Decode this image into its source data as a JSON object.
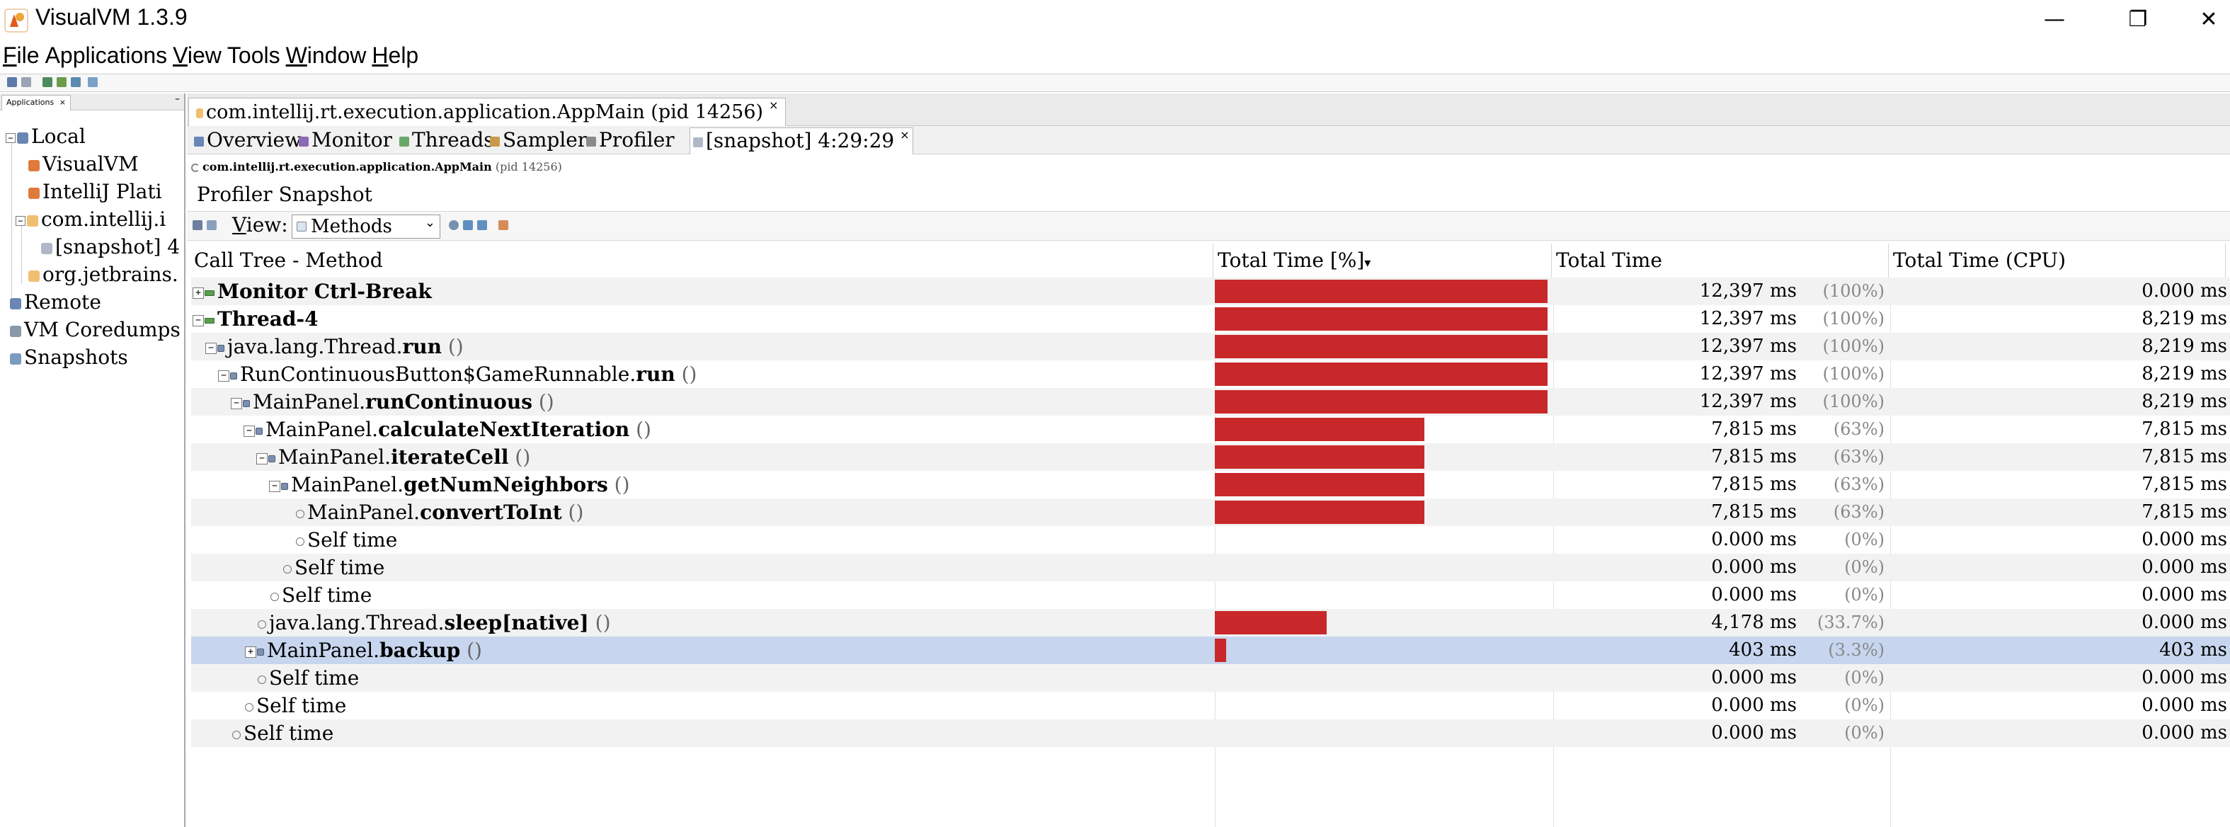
{
  "window": {
    "title": "VisualVM 1.3.9",
    "controls": {
      "minimize": "—",
      "restore": "❐",
      "close": "✕"
    }
  },
  "menu": [
    {
      "label": "File",
      "mnemonic": "F"
    },
    {
      "label": "Applications",
      "mnemonic": "A"
    },
    {
      "label": "View",
      "mnemonic": "V"
    },
    {
      "label": "Tools",
      "mnemonic": "T"
    },
    {
      "label": "Window",
      "mnemonic": "W"
    },
    {
      "label": "Help",
      "mnemonic": "H"
    }
  ],
  "left_panel": {
    "tab": "Applications",
    "tab_close": "×",
    "minimize": "–",
    "tree": [
      {
        "label": "Local",
        "icon": "computer-icon"
      },
      {
        "label": "VisualVM",
        "icon": "visualvm-app-icon"
      },
      {
        "label": "IntelliJ Plati",
        "icon": "intellij-app-icon"
      },
      {
        "label": "com.intellij.i",
        "icon": "java-app-icon"
      },
      {
        "label": "[snapshot] 4",
        "icon": "snapshot-icon"
      },
      {
        "label": "org.jetbrains.",
        "icon": "java-app-icon"
      },
      {
        "label": "Remote",
        "icon": "remote-icon"
      },
      {
        "label": "VM Coredumps",
        "icon": "coredump-icon"
      },
      {
        "label": "Snapshots",
        "icon": "snapshots-icon"
      }
    ]
  },
  "document_tab": {
    "label": "com.intellij.rt.execution.application.AppMain (pid 14256)",
    "close": "×"
  },
  "sub_tabs": [
    {
      "label": "Overview",
      "icon": "overview-icon"
    },
    {
      "label": "Monitor",
      "icon": "monitor-icon"
    },
    {
      "label": "Threads",
      "icon": "threads-icon"
    },
    {
      "label": "Sampler",
      "icon": "sampler-icon"
    },
    {
      "label": "Profiler",
      "icon": "profiler-icon"
    },
    {
      "label": "[snapshot] 4:29:29",
      "icon": "snapshot-icon",
      "active": true,
      "close": "×"
    }
  ],
  "process": {
    "name": "com.intellij.rt.execution.application.AppMain",
    "pid": "(pid 14256)"
  },
  "snapshot_title": "Profiler Snapshot",
  "view": {
    "label": "View:",
    "mnemonic": "V",
    "selected": "Methods",
    "chevron": "⌄"
  },
  "columns": {
    "method": "Call Tree - Method",
    "total_pct": "Total Time [%]",
    "sort_indicator": "▾",
    "total_time": "Total Time",
    "total_cpu": "Total Time (CPU)"
  },
  "rows": [
    {
      "expander": "+",
      "kind": "thread",
      "prefix": "",
      "bold": "Monitor Ctrl-Break",
      "suffix": "",
      "pct": 100,
      "time": "12,397 ms",
      "pct_label": "(100%)",
      "cpu": "0.000 ms"
    },
    {
      "expander": "−",
      "kind": "thread",
      "prefix": "",
      "bold": "Thread-4",
      "suffix": "",
      "pct": 100,
      "time": "12,397 ms",
      "pct_label": "(100%)",
      "cpu": "8,219 ms"
    },
    {
      "expander": "−",
      "kind": "method",
      "prefix": "java.lang.Thread.",
      "bold": "run",
      "suffix": " ()",
      "pct": 100,
      "time": "12,397 ms",
      "pct_label": "(100%)",
      "cpu": "8,219 ms"
    },
    {
      "expander": "−",
      "kind": "method",
      "prefix": "RunContinuousButton$GameRunnable.",
      "bold": "run",
      "suffix": " ()",
      "pct": 100,
      "time": "12,397 ms",
      "pct_label": "(100%)",
      "cpu": "8,219 ms"
    },
    {
      "expander": "−",
      "kind": "method",
      "prefix": "MainPanel.",
      "bold": "runContinuous",
      "suffix": " ()",
      "pct": 100,
      "time": "12,397 ms",
      "pct_label": "(100%)",
      "cpu": "8,219 ms"
    },
    {
      "expander": "−",
      "kind": "method",
      "prefix": "MainPanel.",
      "bold": "calculateNextIteration",
      "suffix": " ()",
      "pct": 63,
      "time": "7,815 ms",
      "pct_label": "(63%)",
      "cpu": "7,815 ms"
    },
    {
      "expander": "−",
      "kind": "method",
      "prefix": "MainPanel.",
      "bold": "iterateCell",
      "suffix": " ()",
      "pct": 63,
      "time": "7,815 ms",
      "pct_label": "(63%)",
      "cpu": "7,815 ms"
    },
    {
      "expander": "−",
      "kind": "method",
      "prefix": "MainPanel.",
      "bold": "getNumNeighbors",
      "suffix": " ()",
      "pct": 63,
      "time": "7,815 ms",
      "pct_label": "(63%)",
      "cpu": "7,815 ms"
    },
    {
      "expander": "",
      "kind": "leaf",
      "prefix": "MainPanel.",
      "bold": "convertToInt",
      "suffix": " ()",
      "pct": 63,
      "time": "7,815 ms",
      "pct_label": "(63%)",
      "cpu": "7,815 ms"
    },
    {
      "expander": "",
      "kind": "leaf",
      "prefix": "Self time",
      "bold": "",
      "suffix": "",
      "pct": 0,
      "time": "0.000 ms",
      "pct_label": "(0%)",
      "cpu": "0.000 ms"
    },
    {
      "expander": "",
      "kind": "leaf",
      "prefix": "Self time",
      "bold": "",
      "suffix": "",
      "pct": 0,
      "time": "0.000 ms",
      "pct_label": "(0%)",
      "cpu": "0.000 ms"
    },
    {
      "expander": "",
      "kind": "leaf",
      "prefix": "Self time",
      "bold": "",
      "suffix": "",
      "pct": 0,
      "time": "0.000 ms",
      "pct_label": "(0%)",
      "cpu": "0.000 ms"
    },
    {
      "expander": "",
      "kind": "leaf",
      "prefix": "java.lang.Thread.",
      "bold": "sleep[native]",
      "suffix": " ()",
      "pct": 33.7,
      "time": "4,178 ms",
      "pct_label": "(33.7%)",
      "cpu": "0.000 ms"
    },
    {
      "expander": "+",
      "kind": "method",
      "prefix": "MainPanel.",
      "bold": "backup",
      "suffix": " ()",
      "pct": 3.3,
      "time": "403 ms",
      "pct_label": "(3.3%)",
      "cpu": "403 ms",
      "selected": true
    },
    {
      "expander": "",
      "kind": "leaf",
      "prefix": "Self time",
      "bold": "",
      "suffix": "",
      "pct": 0,
      "time": "0.000 ms",
      "pct_label": "(0%)",
      "cpu": "0.000 ms"
    },
    {
      "expander": "",
      "kind": "leaf",
      "prefix": "Self time",
      "bold": "",
      "suffix": "",
      "pct": 0,
      "time": "0.000 ms",
      "pct_label": "(0%)",
      "cpu": "0.000 ms"
    },
    {
      "expander": "",
      "kind": "leaf",
      "prefix": "Self time",
      "bold": "",
      "suffix": "",
      "pct": 0,
      "time": "0.000 ms",
      "pct_label": "(0%)",
      "cpu": "0.000 ms"
    }
  ],
  "colors": {
    "bar": "#c8282a",
    "selection": "#c7d6ee",
    "alt_row": "#f2f2f2"
  }
}
